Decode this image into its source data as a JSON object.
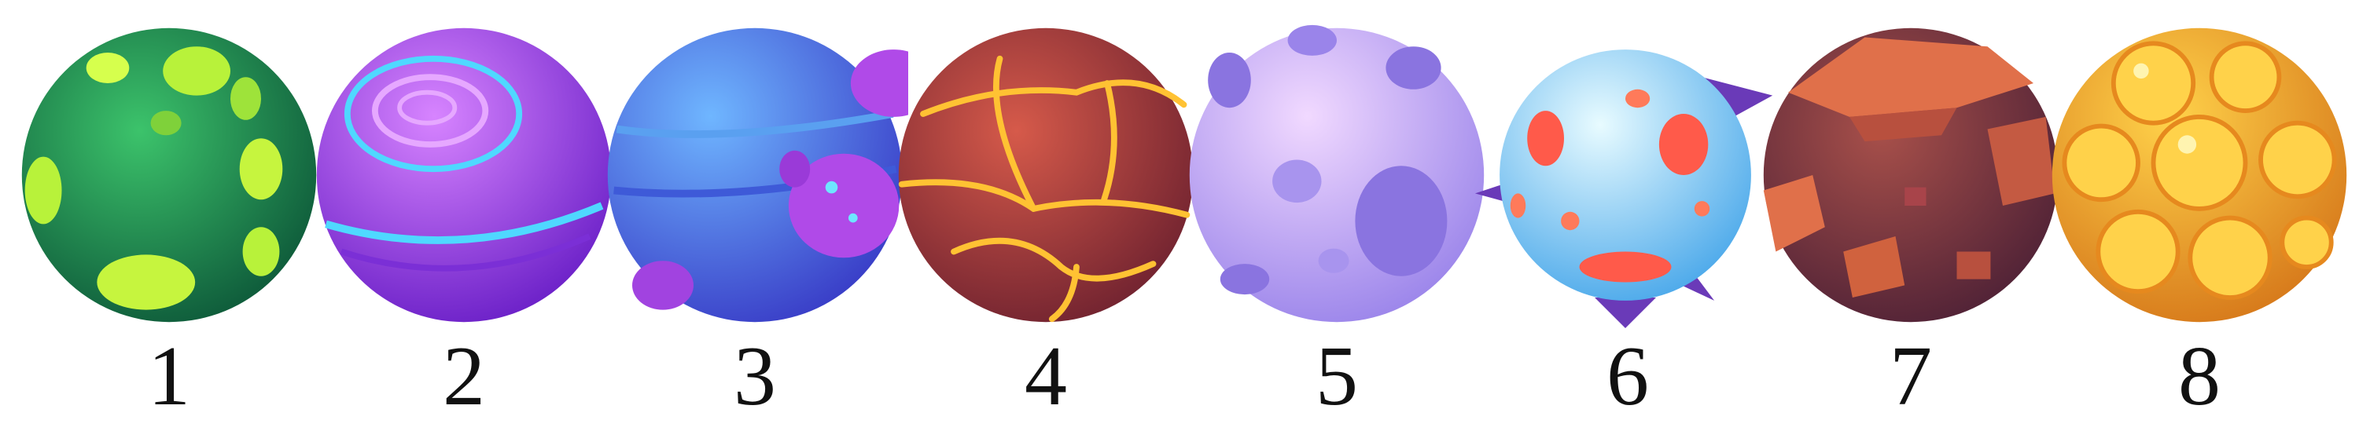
{
  "planets": [
    {
      "label": "1",
      "icon": "green-spotted-planet-icon",
      "base": "#1f8a4c",
      "accent": "#b8f23a"
    },
    {
      "label": "2",
      "icon": "purple-swirl-planet-icon",
      "base": "#a53be6",
      "accent": "#4fd8ff"
    },
    {
      "label": "3",
      "icon": "blue-planet-icon",
      "base": "#4a68e8",
      "accent": "#b04ae8"
    },
    {
      "label": "4",
      "icon": "red-lava-planet-icon",
      "base": "#a8343a",
      "accent": "#ffc233"
    },
    {
      "label": "5",
      "icon": "lavender-cratered-planet-icon",
      "base": "#c9b6f7",
      "accent": "#8a74e0"
    },
    {
      "label": "6",
      "icon": "ice-blue-planet-icon",
      "base": "#8fdcff",
      "accent": "#ff5a4a"
    },
    {
      "label": "7",
      "icon": "rocky-brown-planet-icon",
      "base": "#7a3a3f",
      "accent": "#e0704a"
    },
    {
      "label": "8",
      "icon": "orange-bubble-planet-icon",
      "base": "#f2a21e",
      "accent": "#ffd24a"
    }
  ]
}
